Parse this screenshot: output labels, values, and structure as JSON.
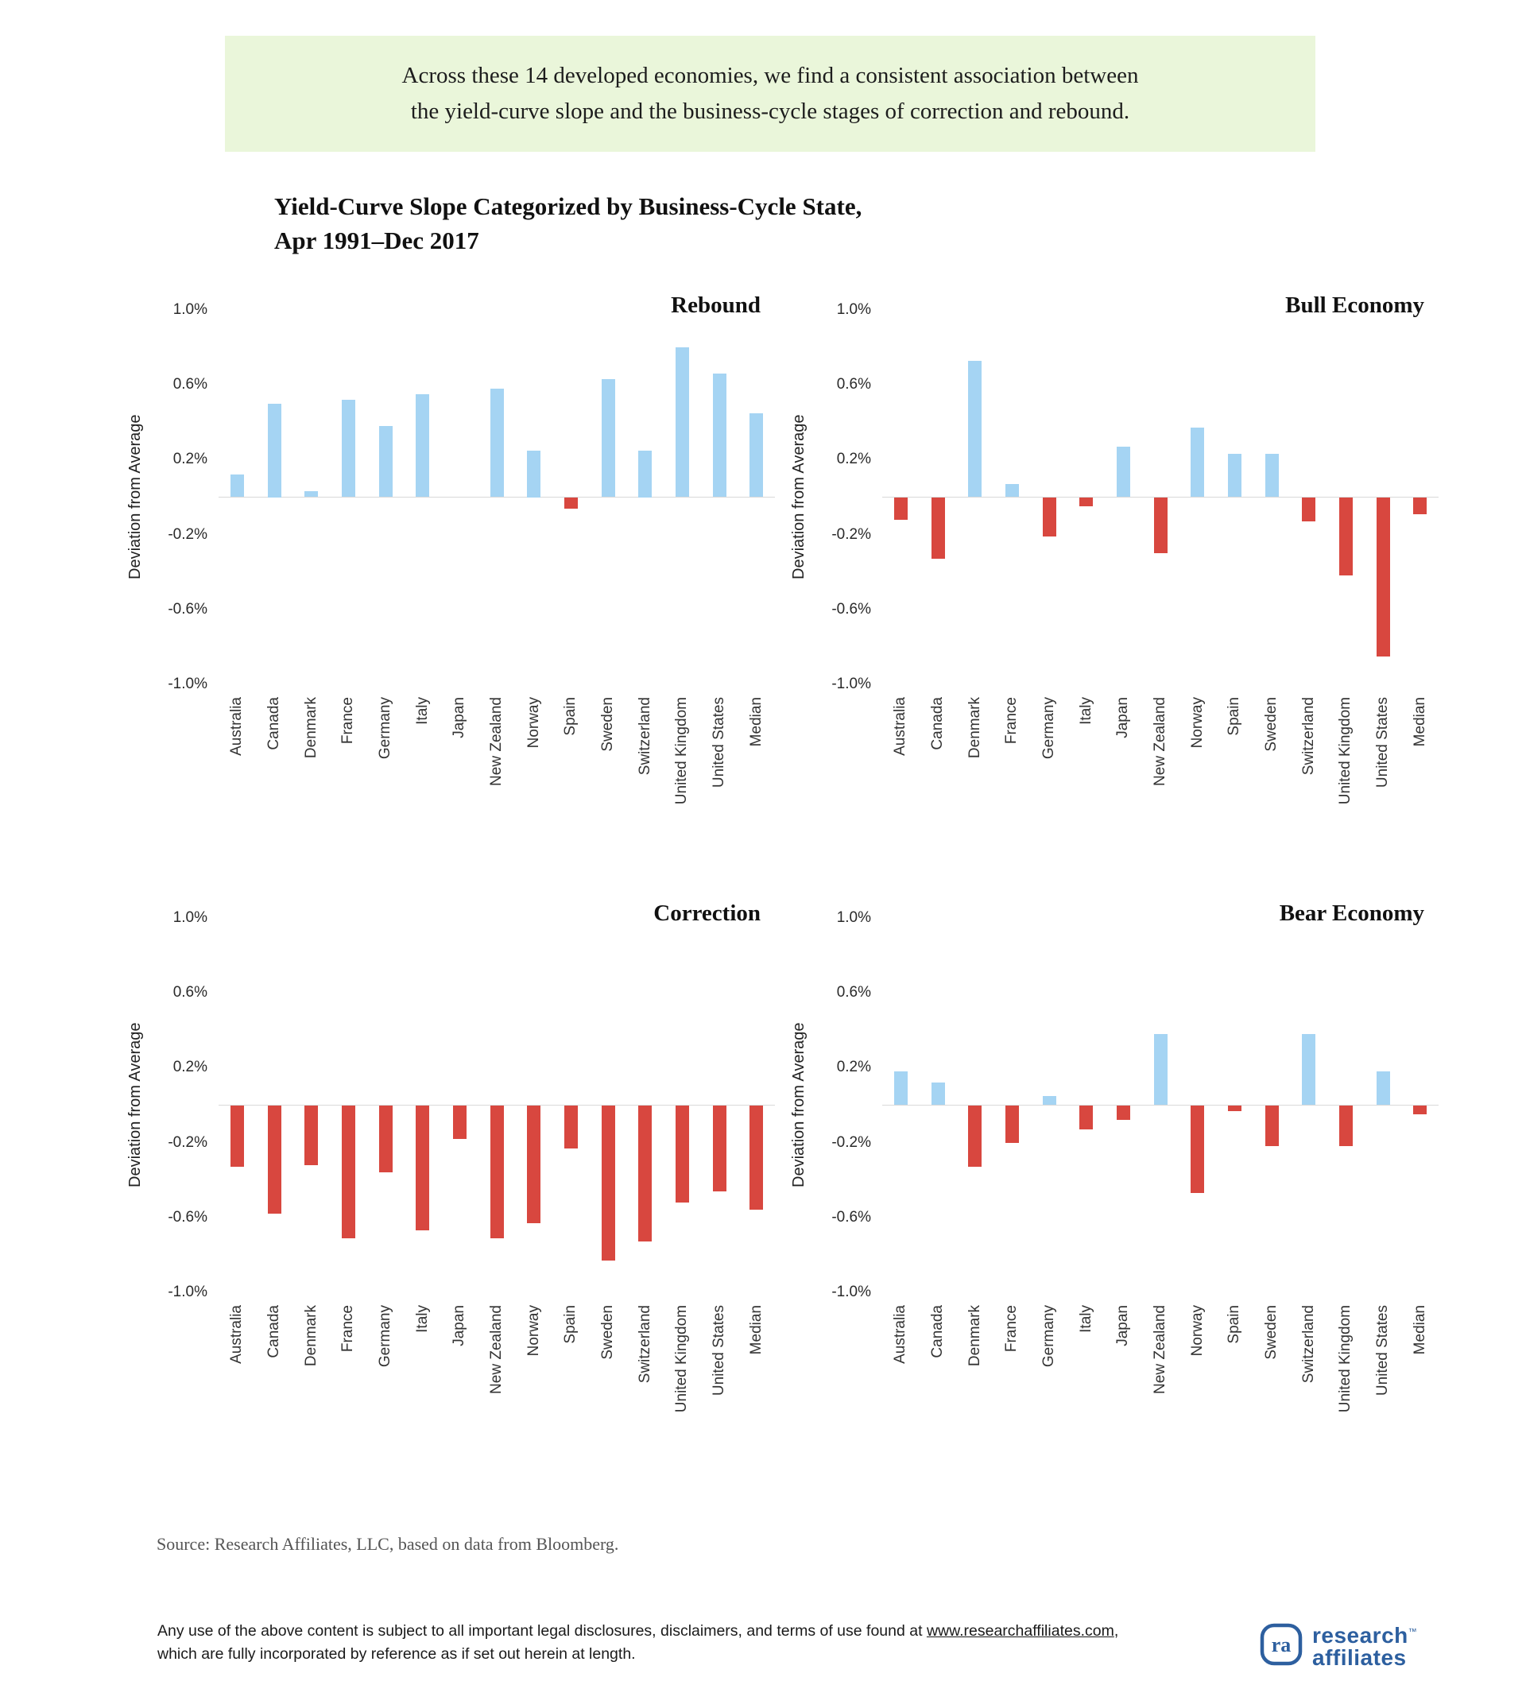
{
  "callout": {
    "text": "Across these 14 developed economies, we find a consistent association between\nthe yield-curve slope and the business-cycle stages of correction and rebound."
  },
  "title": "Yield-Curve Slope Categorized by Business-Cycle State,\nApr 1991–Dec 2017",
  "colors": {
    "positive_bar": "#a5d4f3",
    "negative_bar": "#d8473f",
    "callout_bg": "#eaf6da",
    "zero_line": "#d9d9d9",
    "logo_blue": "#2d5f9f"
  },
  "chart_data": [
    {
      "type": "bar",
      "title": "Rebound",
      "ylabel": "Deviation from Average",
      "ylim": [
        -1.0,
        1.0
      ],
      "grid": false,
      "y_ticks": [
        "1.0%",
        "0.6%",
        "0.2%",
        "-0.2%",
        "-0.6%",
        "-1.0%"
      ],
      "y_tick_values": [
        1.0,
        0.6,
        0.2,
        -0.2,
        -0.6,
        -1.0
      ],
      "categories": [
        "Australia",
        "Canada",
        "Denmark",
        "France",
        "Germany",
        "Italy",
        "Japan",
        "New Zealand",
        "Norway",
        "Spain",
        "Sweden",
        "Switzerland",
        "United Kingdom",
        "United States",
        "Median"
      ],
      "values": [
        0.12,
        0.5,
        0.03,
        0.52,
        0.38,
        0.55,
        0.0,
        0.58,
        0.25,
        -0.06,
        0.63,
        0.25,
        0.8,
        0.66,
        0.45
      ]
    },
    {
      "type": "bar",
      "title": "Bull Economy",
      "ylabel": "Deviation from Average",
      "ylim": [
        -1.0,
        1.0
      ],
      "grid": false,
      "y_ticks": [
        "1.0%",
        "0.6%",
        "0.2%",
        "-0.2%",
        "-0.6%",
        "-1.0%"
      ],
      "y_tick_values": [
        1.0,
        0.6,
        0.2,
        -0.2,
        -0.6,
        -1.0
      ],
      "categories": [
        "Australia",
        "Canada",
        "Denmark",
        "France",
        "Germany",
        "Italy",
        "Japan",
        "New Zealand",
        "Norway",
        "Spain",
        "Sweden",
        "Switzerland",
        "United Kingdom",
        "United States",
        "Median"
      ],
      "values": [
        -0.12,
        -0.33,
        0.73,
        0.07,
        -0.21,
        -0.05,
        0.27,
        -0.3,
        0.37,
        0.23,
        0.23,
        -0.13,
        -0.42,
        -0.85,
        -0.09
      ]
    },
    {
      "type": "bar",
      "title": "Correction",
      "ylabel": "Deviation from Average",
      "ylim": [
        -1.0,
        1.0
      ],
      "grid": false,
      "y_ticks": [
        "1.0%",
        "0.6%",
        "0.2%",
        "-0.2%",
        "-0.6%",
        "-1.0%"
      ],
      "y_tick_values": [
        1.0,
        0.6,
        0.2,
        -0.2,
        -0.6,
        -1.0
      ],
      "categories": [
        "Australia",
        "Canada",
        "Denmark",
        "France",
        "Germany",
        "Italy",
        "Japan",
        "New Zealand",
        "Norway",
        "Spain",
        "Sweden",
        "Switzerland",
        "United Kingdom",
        "United States",
        "Median"
      ],
      "values": [
        -0.33,
        -0.58,
        -0.32,
        -0.71,
        -0.36,
        -0.67,
        -0.18,
        -0.71,
        -0.63,
        -0.23,
        -0.83,
        -0.73,
        -0.52,
        -0.46,
        -0.56
      ]
    },
    {
      "type": "bar",
      "title": "Bear Economy",
      "ylabel": "Deviation from Average",
      "ylim": [
        -1.0,
        1.0
      ],
      "grid": false,
      "y_ticks": [
        "1.0%",
        "0.6%",
        "0.2%",
        "-0.2%",
        "-0.6%",
        "-1.0%"
      ],
      "y_tick_values": [
        1.0,
        0.6,
        0.2,
        -0.2,
        -0.6,
        -1.0
      ],
      "categories": [
        "Australia",
        "Canada",
        "Denmark",
        "France",
        "Germany",
        "Italy",
        "Japan",
        "New Zealand",
        "Norway",
        "Spain",
        "Sweden",
        "Switzerland",
        "United Kingdom",
        "United States",
        "Median"
      ],
      "values": [
        0.18,
        0.12,
        -0.33,
        -0.2,
        0.05,
        -0.13,
        -0.08,
        0.38,
        -0.47,
        -0.03,
        -0.22,
        0.38,
        -0.22,
        0.18,
        -0.05
      ]
    }
  ],
  "footer": {
    "source": "Source: Research Affiliates, LLC, based on data from Bloomberg.",
    "legal_pre": "Any use of the above content is subject to all important legal disclosures, disclaimers, and terms of use found at ",
    "legal_link": "www.researchaffiliates.com",
    "legal_post": ", which are fully incorporated by reference as if set out herein at length.",
    "logo": {
      "icon": "ra-monogram",
      "word1": "research",
      "trademark": "™",
      "word2": "affiliates"
    }
  }
}
